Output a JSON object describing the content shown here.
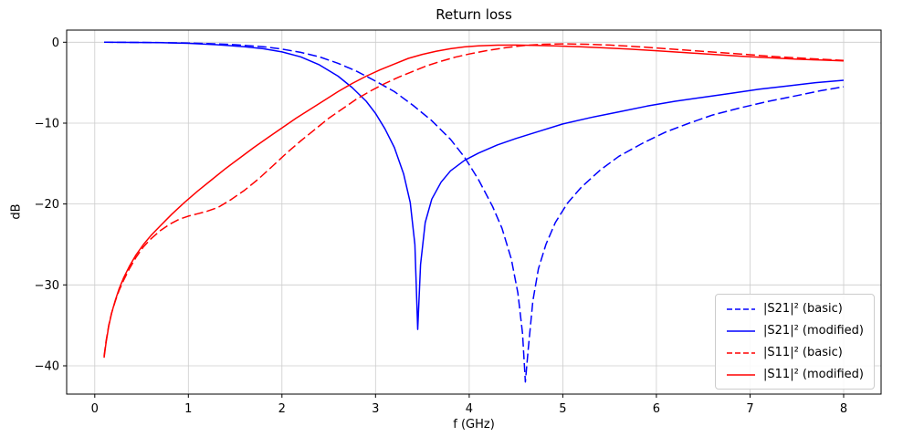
{
  "chart_data": {
    "type": "line",
    "title": "Return loss",
    "xlabel": "f (GHz)",
    "ylabel": "dB",
    "xlim": [
      -0.3,
      8.4
    ],
    "ylim": [
      -43.5,
      1.5
    ],
    "grid": true,
    "legend_position": "lower right",
    "xticks": {
      "values": [
        0,
        1,
        2,
        3,
        4,
        5,
        6,
        7,
        8
      ],
      "labels": [
        "0",
        "1",
        "2",
        "3",
        "4",
        "5",
        "6",
        "7",
        "8"
      ]
    },
    "yticks": {
      "values": [
        0,
        -10,
        -20,
        -30,
        -40
      ],
      "labels": [
        "0",
        "−10",
        "−20",
        "−30",
        "−40"
      ]
    },
    "colors": {
      "blue": "#0000ff",
      "red": "#ff0000",
      "grid": "#cccccc",
      "frame": "#000000"
    },
    "series": [
      {
        "id": "s21-basic",
        "label": "|S21|² (basic)",
        "color": "#0000ff",
        "style": "dashed",
        "dash": "10 4",
        "points": [
          [
            0.1,
            0
          ],
          [
            0.3,
            -0.01
          ],
          [
            0.6,
            -0.03
          ],
          [
            0.9,
            -0.08
          ],
          [
            1.2,
            -0.16
          ],
          [
            1.5,
            -0.3
          ],
          [
            1.8,
            -0.55
          ],
          [
            2.0,
            -0.85
          ],
          [
            2.2,
            -1.25
          ],
          [
            2.4,
            -1.8
          ],
          [
            2.6,
            -2.6
          ],
          [
            2.8,
            -3.6
          ],
          [
            3.0,
            -4.8
          ],
          [
            3.2,
            -6.1
          ],
          [
            3.4,
            -7.8
          ],
          [
            3.6,
            -9.7
          ],
          [
            3.8,
            -12.0
          ],
          [
            3.95,
            -14.2
          ],
          [
            4.1,
            -17.0
          ],
          [
            4.25,
            -20.3
          ],
          [
            4.35,
            -23.0
          ],
          [
            4.45,
            -26.8
          ],
          [
            4.52,
            -31.0
          ],
          [
            4.57,
            -36.0
          ],
          [
            4.6,
            -42.0
          ],
          [
            4.63,
            -38.0
          ],
          [
            4.68,
            -32.0
          ],
          [
            4.74,
            -28.0
          ],
          [
            4.82,
            -25.0
          ],
          [
            4.92,
            -22.3
          ],
          [
            5.05,
            -19.9
          ],
          [
            5.2,
            -17.9
          ],
          [
            5.4,
            -15.8
          ],
          [
            5.6,
            -14.1
          ],
          [
            5.85,
            -12.5
          ],
          [
            6.1,
            -11.1
          ],
          [
            6.35,
            -10.0
          ],
          [
            6.6,
            -9.0
          ],
          [
            6.9,
            -8.1
          ],
          [
            7.2,
            -7.3
          ],
          [
            7.5,
            -6.6
          ],
          [
            7.75,
            -6.0
          ],
          [
            8.0,
            -5.5
          ]
        ]
      },
      {
        "id": "s21-modified",
        "label": "|S21|² (modified)",
        "color": "#0000ff",
        "style": "solid",
        "dash": "",
        "points": [
          [
            0.1,
            0
          ],
          [
            0.4,
            -0.02
          ],
          [
            0.7,
            -0.06
          ],
          [
            1.0,
            -0.14
          ],
          [
            1.3,
            -0.3
          ],
          [
            1.6,
            -0.55
          ],
          [
            1.8,
            -0.8
          ],
          [
            2.0,
            -1.2
          ],
          [
            2.2,
            -1.8
          ],
          [
            2.4,
            -2.8
          ],
          [
            2.6,
            -4.2
          ],
          [
            2.75,
            -5.6
          ],
          [
            2.9,
            -7.3
          ],
          [
            3.0,
            -8.8
          ],
          [
            3.1,
            -10.7
          ],
          [
            3.2,
            -13.0
          ],
          [
            3.3,
            -16.3
          ],
          [
            3.37,
            -19.8
          ],
          [
            3.42,
            -25.0
          ],
          [
            3.45,
            -35.5
          ],
          [
            3.48,
            -27.5
          ],
          [
            3.53,
            -22.3
          ],
          [
            3.6,
            -19.4
          ],
          [
            3.7,
            -17.3
          ],
          [
            3.8,
            -15.9
          ],
          [
            3.95,
            -14.6
          ],
          [
            4.1,
            -13.7
          ],
          [
            4.3,
            -12.7
          ],
          [
            4.5,
            -11.9
          ],
          [
            4.75,
            -11.0
          ],
          [
            5.0,
            -10.1
          ],
          [
            5.3,
            -9.3
          ],
          [
            5.6,
            -8.6
          ],
          [
            5.9,
            -7.9
          ],
          [
            6.2,
            -7.3
          ],
          [
            6.5,
            -6.8
          ],
          [
            6.8,
            -6.3
          ],
          [
            7.1,
            -5.8
          ],
          [
            7.4,
            -5.4
          ],
          [
            7.7,
            -5.0
          ],
          [
            8.0,
            -4.7
          ]
        ]
      },
      {
        "id": "s11-basic",
        "label": "|S11|² (basic)",
        "color": "#ff0000",
        "style": "dashed",
        "dash": "10 4",
        "points": [
          [
            0.1,
            -38.8
          ],
          [
            0.12,
            -37.0
          ],
          [
            0.15,
            -35.0
          ],
          [
            0.18,
            -33.5
          ],
          [
            0.22,
            -32.0
          ],
          [
            0.26,
            -30.7
          ],
          [
            0.31,
            -29.4
          ],
          [
            0.37,
            -28.0
          ],
          [
            0.44,
            -26.6
          ],
          [
            0.52,
            -25.3
          ],
          [
            0.6,
            -24.3
          ],
          [
            0.7,
            -23.3
          ],
          [
            0.8,
            -22.5
          ],
          [
            0.9,
            -21.9
          ],
          [
            1.0,
            -21.5
          ],
          [
            1.1,
            -21.2
          ],
          [
            1.2,
            -20.9
          ],
          [
            1.32,
            -20.4
          ],
          [
            1.45,
            -19.5
          ],
          [
            1.6,
            -18.3
          ],
          [
            1.75,
            -16.9
          ],
          [
            1.9,
            -15.3
          ],
          [
            2.05,
            -13.7
          ],
          [
            2.2,
            -12.2
          ],
          [
            2.35,
            -10.8
          ],
          [
            2.5,
            -9.4
          ],
          [
            2.65,
            -8.2
          ],
          [
            2.8,
            -7.0
          ],
          [
            2.95,
            -6.0
          ],
          [
            3.1,
            -5.1
          ],
          [
            3.25,
            -4.3
          ],
          [
            3.4,
            -3.6
          ],
          [
            3.55,
            -2.9
          ],
          [
            3.7,
            -2.35
          ],
          [
            3.85,
            -1.85
          ],
          [
            4.0,
            -1.45
          ],
          [
            4.2,
            -1.0
          ],
          [
            4.4,
            -0.65
          ],
          [
            4.6,
            -0.4
          ],
          [
            4.8,
            -0.25
          ],
          [
            5.0,
            -0.2
          ],
          [
            5.25,
            -0.25
          ],
          [
            5.5,
            -0.35
          ],
          [
            5.8,
            -0.55
          ],
          [
            6.1,
            -0.8
          ],
          [
            6.4,
            -1.05
          ],
          [
            6.7,
            -1.3
          ],
          [
            7.0,
            -1.55
          ],
          [
            7.3,
            -1.8
          ],
          [
            7.6,
            -2.0
          ],
          [
            8.0,
            -2.25
          ]
        ]
      },
      {
        "id": "s11-modified",
        "label": "|S11|² (modified)",
        "color": "#ff0000",
        "style": "solid",
        "dash": "",
        "points": [
          [
            0.1,
            -39.0
          ],
          [
            0.12,
            -37.2
          ],
          [
            0.15,
            -35.1
          ],
          [
            0.18,
            -33.5
          ],
          [
            0.22,
            -31.9
          ],
          [
            0.26,
            -30.5
          ],
          [
            0.31,
            -29.1
          ],
          [
            0.37,
            -27.7
          ],
          [
            0.44,
            -26.3
          ],
          [
            0.52,
            -25.0
          ],
          [
            0.6,
            -23.9
          ],
          [
            0.7,
            -22.7
          ],
          [
            0.82,
            -21.3
          ],
          [
            0.95,
            -19.9
          ],
          [
            1.1,
            -18.4
          ],
          [
            1.25,
            -17.0
          ],
          [
            1.4,
            -15.6
          ],
          [
            1.55,
            -14.3
          ],
          [
            1.7,
            -13.0
          ],
          [
            1.85,
            -11.8
          ],
          [
            2.0,
            -10.6
          ],
          [
            2.15,
            -9.4
          ],
          [
            2.3,
            -8.3
          ],
          [
            2.45,
            -7.2
          ],
          [
            2.6,
            -6.1
          ],
          [
            2.75,
            -5.1
          ],
          [
            2.9,
            -4.2
          ],
          [
            3.05,
            -3.4
          ],
          [
            3.2,
            -2.7
          ],
          [
            3.35,
            -2.0
          ],
          [
            3.5,
            -1.5
          ],
          [
            3.65,
            -1.1
          ],
          [
            3.8,
            -0.8
          ],
          [
            3.95,
            -0.58
          ],
          [
            4.1,
            -0.45
          ],
          [
            4.3,
            -0.36
          ],
          [
            4.5,
            -0.35
          ],
          [
            4.7,
            -0.38
          ],
          [
            4.9,
            -0.44
          ],
          [
            5.15,
            -0.54
          ],
          [
            5.4,
            -0.67
          ],
          [
            5.7,
            -0.85
          ],
          [
            6.0,
            -1.05
          ],
          [
            6.3,
            -1.28
          ],
          [
            6.6,
            -1.5
          ],
          [
            6.9,
            -1.72
          ],
          [
            7.2,
            -1.92
          ],
          [
            7.5,
            -2.1
          ],
          [
            7.75,
            -2.2
          ],
          [
            8.0,
            -2.3
          ]
        ]
      }
    ]
  }
}
